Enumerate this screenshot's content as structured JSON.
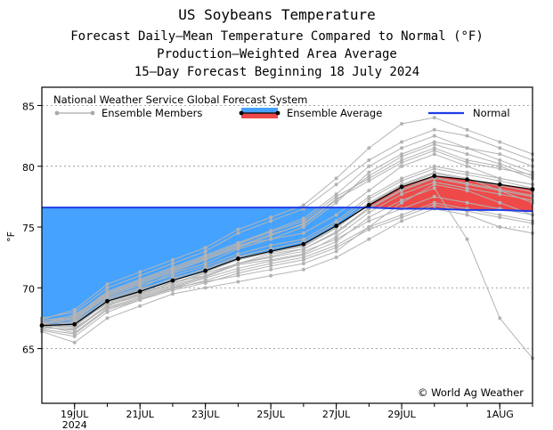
{
  "chart_data": {
    "type": "line",
    "title_lines": [
      "US Soybeans Temperature",
      "Forecast Daily—Mean Temperature Compared to Normal (°F)",
      "Production—Weighted Area Average",
      "15—Day Forecast Beginning 18 July 2024"
    ],
    "ylabel": "°F",
    "ylim": [
      60.5,
      86.5
    ],
    "yticks": [
      65,
      70,
      75,
      80,
      85
    ],
    "grid": true,
    "x_days": [
      18,
      19,
      20,
      21,
      22,
      23,
      24,
      25,
      26,
      27,
      28,
      29,
      30,
      31,
      32,
      33
    ],
    "xticks": [
      {
        "day": 19,
        "label": "19JUL",
        "sub": "2024"
      },
      {
        "day": 21,
        "label": "21JUL",
        "sub": ""
      },
      {
        "day": 23,
        "label": "23JUL",
        "sub": ""
      },
      {
        "day": 25,
        "label": "25JUL",
        "sub": ""
      },
      {
        "day": 27,
        "label": "27JUL",
        "sub": ""
      },
      {
        "day": 29,
        "label": "29JUL",
        "sub": ""
      },
      {
        "day": 32,
        "label": "1AUG",
        "sub": ""
      }
    ],
    "legend": {
      "source": "National Weather Service Global Forecast System",
      "members": "Ensemble Members",
      "average": "Ensemble Average",
      "normal": "Normal"
    },
    "credit": "© World Ag Weather",
    "series": [
      {
        "name": "Normal",
        "color": "#1f3ce6",
        "values": [
          76.6,
          76.6,
          76.6,
          76.6,
          76.6,
          76.6,
          76.6,
          76.6,
          76.6,
          76.6,
          76.6,
          76.5,
          76.5,
          76.4,
          76.4,
          76.3
        ]
      },
      {
        "name": "Ensemble Average",
        "color": "#000000",
        "values": [
          66.9,
          67.0,
          68.9,
          69.7,
          70.6,
          71.4,
          72.4,
          73.0,
          73.6,
          75.1,
          76.8,
          78.3,
          79.2,
          78.9,
          78.5,
          78.1
        ]
      }
    ],
    "members": [
      [
        67.3,
        67.5,
        69.2,
        70.0,
        71.2,
        72.0,
        73.2,
        74.0,
        75.0,
        77.0,
        79.5,
        81.0,
        82.0,
        81.5,
        80.5,
        79.5
      ],
      [
        66.8,
        66.5,
        68.5,
        69.5,
        70.5,
        71.0,
        72.0,
        72.5,
        73.0,
        74.0,
        75.5,
        76.5,
        77.5,
        77.0,
        76.5,
        76.0
      ],
      [
        67.0,
        67.8,
        69.5,
        70.5,
        71.5,
        72.5,
        73.5,
        74.0,
        74.5,
        76.0,
        78.0,
        80.0,
        81.0,
        80.0,
        79.0,
        78.5
      ],
      [
        66.5,
        66.0,
        68.0,
        69.0,
        70.0,
        70.5,
        71.0,
        71.5,
        72.0,
        73.0,
        75.0,
        77.0,
        78.5,
        78.0,
        77.0,
        76.0
      ],
      [
        67.5,
        68.0,
        70.0,
        71.0,
        72.0,
        73.0,
        74.5,
        75.5,
        76.5,
        78.5,
        80.5,
        82.0,
        83.0,
        82.5,
        81.5,
        80.5
      ],
      [
        66.8,
        67.2,
        69.0,
        69.8,
        70.8,
        71.5,
        72.5,
        73.0,
        73.5,
        75.0,
        77.0,
        78.5,
        79.5,
        79.0,
        78.0,
        77.5
      ],
      [
        67.0,
        66.8,
        68.8,
        69.5,
        70.3,
        71.2,
        72.0,
        72.8,
        73.2,
        74.5,
        76.5,
        78.0,
        79.0,
        78.5,
        78.0,
        77.0
      ],
      [
        66.6,
        67.3,
        69.3,
        70.2,
        71.0,
        71.8,
        72.8,
        73.5,
        74.0,
        75.5,
        77.5,
        79.0,
        80.0,
        79.5,
        79.0,
        78.5
      ],
      [
        67.1,
        67.6,
        69.6,
        70.6,
        71.6,
        72.6,
        73.6,
        74.6,
        75.5,
        77.5,
        79.0,
        80.5,
        81.5,
        80.5,
        80.0,
        79.0
      ],
      [
        66.9,
        66.3,
        68.3,
        69.1,
        69.9,
        70.6,
        71.4,
        72.0,
        72.5,
        73.5,
        75.0,
        76.0,
        77.0,
        76.5,
        76.0,
        75.5
      ],
      [
        67.2,
        67.1,
        69.1,
        69.9,
        70.7,
        71.6,
        72.6,
        73.2,
        73.8,
        75.3,
        77.3,
        78.8,
        79.8,
        79.3,
        78.8,
        78.2
      ],
      [
        66.7,
        66.6,
        68.6,
        69.3,
        70.1,
        70.9,
        71.9,
        72.3,
        72.8,
        74.2,
        76.2,
        77.7,
        78.7,
        78.2,
        77.7,
        77.2
      ],
      [
        67.4,
        68.2,
        70.3,
        71.3,
        72.3,
        73.3,
        74.8,
        75.8,
        76.8,
        79.0,
        81.5,
        83.5,
        84.0,
        83.0,
        82.0,
        81.0
      ],
      [
        66.4,
        65.5,
        67.5,
        68.5,
        69.5,
        70.0,
        70.5,
        71.0,
        71.5,
        72.5,
        74.0,
        75.5,
        76.5,
        76.0,
        75.0,
        74.5
      ],
      [
        67.0,
        67.4,
        69.4,
        70.3,
        71.3,
        72.3,
        73.3,
        74.3,
        75.3,
        77.3,
        78.8,
        80.3,
        81.3,
        80.3,
        79.8,
        79.3
      ],
      [
        66.8,
        66.9,
        68.9,
        69.6,
        70.4,
        71.3,
        72.3,
        72.9,
        73.4,
        74.9,
        76.9,
        78.4,
        79.4,
        78.9,
        78.4,
        77.9
      ],
      [
        67.3,
        67.7,
        69.7,
        70.7,
        71.7,
        72.7,
        73.7,
        74.7,
        75.7,
        77.7,
        80.0,
        81.5,
        82.5,
        81.5,
        81.0,
        80.0
      ],
      [
        66.6,
        66.2,
        68.2,
        69.0,
        69.8,
        70.4,
        71.2,
        71.8,
        72.3,
        73.3,
        74.8,
        75.8,
        76.8,
        76.3,
        75.8,
        75.3
      ],
      [
        67.0,
        67.0,
        68.7,
        69.4,
        70.2,
        71.0,
        72.0,
        72.6,
        73.2,
        74.6,
        76.6,
        78.1,
        79.1,
        78.6,
        78.1,
        77.6
      ],
      [
        67.1,
        67.5,
        69.5,
        70.4,
        71.4,
        72.4,
        73.4,
        74.4,
        75.2,
        77.2,
        79.2,
        80.8,
        81.8,
        81.0,
        80.2,
        79.2
      ],
      [
        66.9,
        66.7,
        68.4,
        69.2,
        70.0,
        70.8,
        71.6,
        72.2,
        72.7,
        73.8,
        75.8,
        77.2,
        78.2,
        74.0,
        67.5,
        64.2
      ]
    ]
  }
}
